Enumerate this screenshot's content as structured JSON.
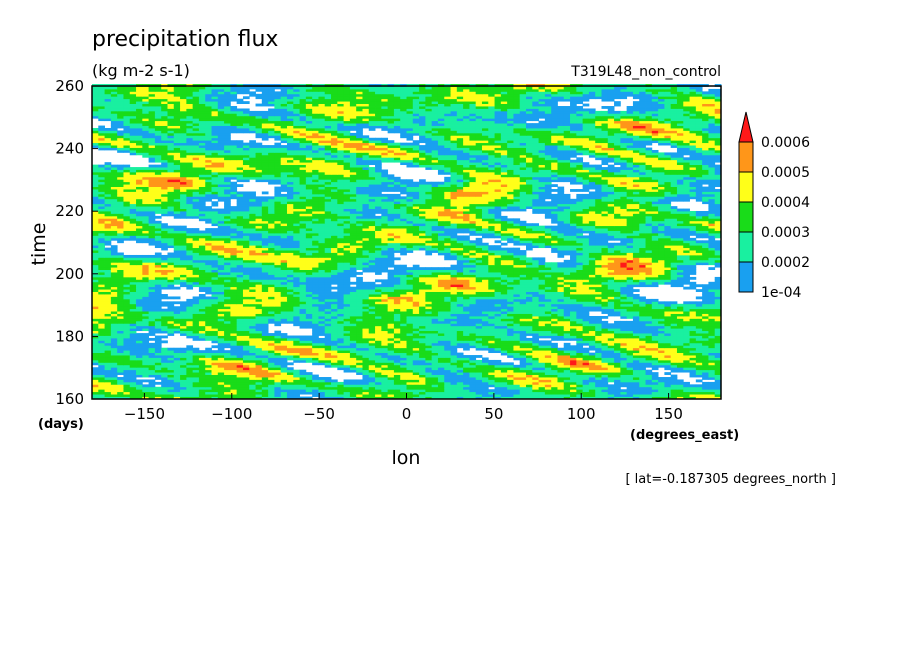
{
  "chart_data": {
    "type": "heatmap",
    "title": "precipitation flux",
    "units": "(kg m-2 s-1)",
    "experiment": "T319L48_non_control",
    "xlabel": "lon",
    "ylabel": "time",
    "x_units": "(degrees_east)",
    "y_units": "(days)",
    "xlim": [
      -180,
      180
    ],
    "ylim": [
      160,
      260
    ],
    "x_ticks": [
      -150,
      -100,
      -50,
      0,
      50,
      100,
      150
    ],
    "x_tick_labels": [
      "−150",
      "−100",
      "−50",
      "0",
      "50",
      "100",
      "150"
    ],
    "y_ticks": [
      160,
      180,
      200,
      220,
      240,
      260
    ],
    "y_tick_labels": [
      "160",
      "180",
      "200",
      "220",
      "240",
      "260"
    ],
    "footnote": "[ lat=-0.187305 degrees_north ]",
    "colorbar": {
      "levels": [
        0.0001,
        0.0002,
        0.0003,
        0.0004,
        0.0005,
        0.0006
      ],
      "labels": [
        "1e-04",
        "0.0002",
        "0.0003",
        "0.0004",
        "0.0005",
        "0.0006"
      ],
      "colors": [
        "#19a0f0",
        "#19f0a0",
        "#19dc19",
        "#ffff19",
        "#ff9619",
        "#ff1919"
      ],
      "below_color": "#ffffff",
      "extend": "max"
    },
    "pattern": {
      "description_of_structure": "streaks tilted westward with time (westward-propagating bands)",
      "slope_deg_per_day": -3
    }
  }
}
